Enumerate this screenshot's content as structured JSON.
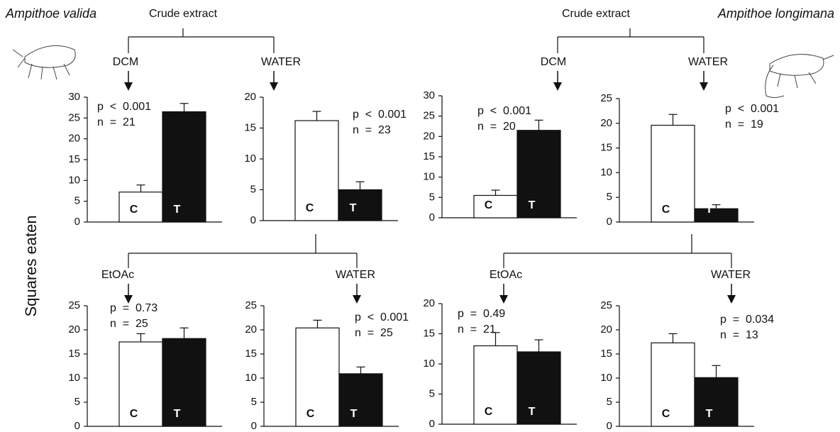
{
  "figure": {
    "y_label": "Squares eaten",
    "panels": [
      {
        "species": "Ampithoe valida",
        "extract": "Crude extract"
      },
      {
        "species": "Ampithoe longimana",
        "extract": "Crude extract"
      }
    ]
  },
  "chart_data": [
    {
      "type": "bar",
      "fraction": "DCM",
      "categories": [
        "C",
        "T"
      ],
      "values": [
        7.2,
        26.5
      ],
      "errors": [
        1.7,
        2
      ],
      "colors": [
        "#ffffff",
        "#111111"
      ],
      "ylim": [
        0,
        30
      ],
      "yticks": [
        0,
        5,
        10,
        15,
        20,
        25,
        30
      ],
      "p_text": "p  <  0.001",
      "n_text": "n  =  21"
    },
    {
      "type": "bar",
      "fraction": "WATER",
      "categories": [
        "C",
        "T"
      ],
      "values": [
        16.2,
        5
      ],
      "errors": [
        1.5,
        1.3
      ],
      "colors": [
        "#ffffff",
        "#111111"
      ],
      "ylim": [
        0,
        20
      ],
      "yticks": [
        0,
        5,
        10,
        15,
        20
      ],
      "p_text": "p  <  0.001",
      "n_text": "n  =  23"
    },
    {
      "type": "bar",
      "fraction": "DCM",
      "categories": [
        "C",
        "T"
      ],
      "values": [
        5.5,
        21.5
      ],
      "errors": [
        1.3,
        2.5
      ],
      "colors": [
        "#ffffff",
        "#111111"
      ],
      "ylim": [
        0,
        30
      ],
      "yticks": [
        0,
        5,
        10,
        15,
        20,
        25,
        30
      ],
      "p_text": "p  <  0.001",
      "n_text": "n  =  20"
    },
    {
      "type": "bar",
      "fraction": "WATER",
      "categories": [
        "C",
        "T"
      ],
      "values": [
        19.6,
        2.7
      ],
      "errors": [
        2.2,
        0.8
      ],
      "colors": [
        "#ffffff",
        "#111111"
      ],
      "ylim": [
        0,
        25
      ],
      "yticks": [
        0,
        5,
        10,
        15,
        20,
        25
      ],
      "p_text": "p  <  0.001",
      "n_text": "n  =  19"
    },
    {
      "type": "bar",
      "fraction": "EtOAc",
      "categories": [
        "C",
        "T"
      ],
      "values": [
        17.5,
        18.2
      ],
      "errors": [
        1.7,
        2.2
      ],
      "colors": [
        "#ffffff",
        "#111111"
      ],
      "ylim": [
        0,
        25
      ],
      "yticks": [
        0,
        5,
        10,
        15,
        20,
        25
      ],
      "p_text": "p  =  0.73",
      "n_text": "n  =  25"
    },
    {
      "type": "bar",
      "fraction": "WATER",
      "categories": [
        "C",
        "T"
      ],
      "values": [
        20.4,
        10.9
      ],
      "errors": [
        1.6,
        1.4
      ],
      "colors": [
        "#ffffff",
        "#111111"
      ],
      "ylim": [
        0,
        25
      ],
      "yticks": [
        0,
        5,
        10,
        15,
        20,
        25
      ],
      "p_text": "p  <  0.001",
      "n_text": "n  =  25"
    },
    {
      "type": "bar",
      "fraction": "EtOAc",
      "categories": [
        "C",
        "T"
      ],
      "values": [
        13,
        12
      ],
      "errors": [
        2.2,
        2
      ],
      "colors": [
        "#ffffff",
        "#111111"
      ],
      "ylim": [
        0,
        20
      ],
      "yticks": [
        0,
        5,
        10,
        15,
        20
      ],
      "p_text": "p  =  0.49",
      "n_text": "n  =  21"
    },
    {
      "type": "bar",
      "fraction": "WATER",
      "categories": [
        "C",
        "T"
      ],
      "values": [
        17.3,
        10.1
      ],
      "errors": [
        1.9,
        2.5
      ],
      "colors": [
        "#ffffff",
        "#111111"
      ],
      "ylim": [
        0,
        25
      ],
      "yticks": [
        0,
        5,
        10,
        15,
        20,
        25
      ],
      "p_text": "p  =  0.034",
      "n_text": "n  =  13"
    }
  ]
}
